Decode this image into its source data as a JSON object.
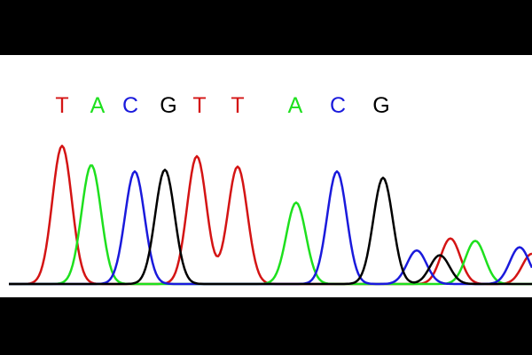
{
  "colors": {
    "T": "#d41414",
    "A": "#1ee01e",
    "C": "#1a1adc",
    "G": "#000000",
    "frame": "#000000",
    "background": "#ffffff"
  },
  "chart_data": {
    "type": "line",
    "title": "",
    "xlabel": "",
    "ylabel": "",
    "grid": false,
    "legend": "none",
    "base_calls": [
      {
        "base": "T",
        "x": 70
      },
      {
        "base": "A",
        "x": 110
      },
      {
        "base": "C",
        "x": 147
      },
      {
        "base": "G",
        "x": 190
      },
      {
        "base": "T",
        "x": 225
      },
      {
        "base": "T",
        "x": 268
      },
      {
        "base": "A",
        "x": 333
      },
      {
        "base": "C",
        "x": 381
      },
      {
        "base": "G",
        "x": 430
      }
    ],
    "series": [
      {
        "base": "T",
        "peaks": [
          [
            70,
            173
          ],
          [
            222,
            160
          ],
          [
            268,
            147
          ],
          [
            508,
            57
          ],
          [
            600,
            38
          ]
        ]
      },
      {
        "base": "A",
        "peaks": [
          [
            103,
            149
          ],
          [
            334,
            102
          ],
          [
            536,
            54
          ]
        ]
      },
      {
        "base": "C",
        "peaks": [
          [
            152,
            141
          ],
          [
            380,
            141
          ],
          [
            470,
            42
          ],
          [
            586,
            46
          ]
        ]
      },
      {
        "base": "G",
        "peaks": [
          [
            186,
            143
          ],
          [
            432,
            133
          ],
          [
            496,
            36
          ]
        ]
      }
    ],
    "x_range": [
      0,
      600
    ],
    "y_range": [
      0,
      200
    ]
  }
}
